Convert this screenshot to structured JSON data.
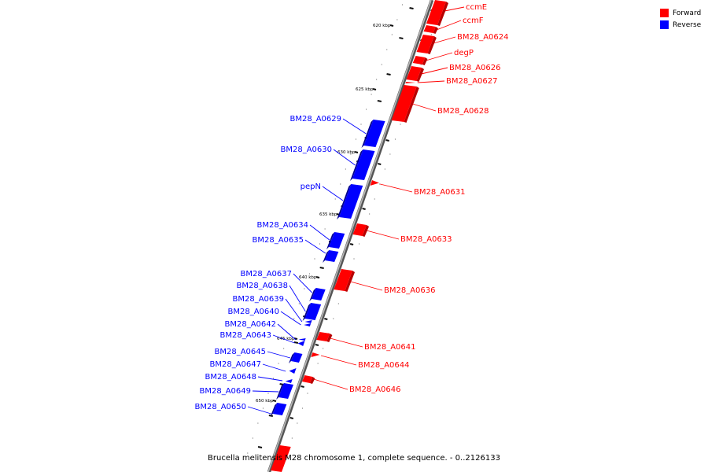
{
  "caption": "Brucella melitensis M28 chromosome 1, complete sequence. - 0..2126133",
  "legend": [
    {
      "label": "Forward",
      "color": "#ff0000"
    },
    {
      "label": "Reverse",
      "color": "#0000ff"
    }
  ],
  "colors": {
    "forward": "#ff0000",
    "reverse": "#0000ff",
    "backbone": "#808080"
  },
  "ticks": [
    {
      "label": "620 kbp",
      "kbp": 620
    },
    {
      "label": "625 kbp",
      "kbp": 625
    },
    {
      "label": "630 kbp",
      "kbp": 630
    },
    {
      "label": "635 kbp",
      "kbp": 635
    },
    {
      "label": "640 kbp",
      "kbp": 640
    },
    {
      "label": "645 kbp",
      "kbp": 645
    },
    {
      "label": "650 kbp",
      "kbp": 650
    }
  ],
  "genes": [
    {
      "name": "ccmE",
      "strand": "forward"
    },
    {
      "name": "ccmF",
      "strand": "forward"
    },
    {
      "name": "BM28_A0624",
      "strand": "forward"
    },
    {
      "name": "degP",
      "strand": "forward"
    },
    {
      "name": "BM28_A0626",
      "strand": "forward"
    },
    {
      "name": "BM28_A0627",
      "strand": "forward"
    },
    {
      "name": "BM28_A0628",
      "strand": "forward"
    },
    {
      "name": "BM28_A0629",
      "strand": "reverse"
    },
    {
      "name": "BM28_A0630",
      "strand": "reverse"
    },
    {
      "name": "BM28_A0631",
      "strand": "forward"
    },
    {
      "name": "pepN",
      "strand": "reverse"
    },
    {
      "name": "BM28_A0633",
      "strand": "forward"
    },
    {
      "name": "BM28_A0634",
      "strand": "reverse"
    },
    {
      "name": "BM28_A0635",
      "strand": "reverse"
    },
    {
      "name": "BM28_A0636",
      "strand": "forward"
    },
    {
      "name": "BM28_A0637",
      "strand": "reverse"
    },
    {
      "name": "BM28_A0638",
      "strand": "reverse"
    },
    {
      "name": "BM28_A0639",
      "strand": "reverse"
    },
    {
      "name": "BM28_A0640",
      "strand": "reverse"
    },
    {
      "name": "BM28_A0641",
      "strand": "forward"
    },
    {
      "name": "BM28_A0642",
      "strand": "reverse"
    },
    {
      "name": "BM28_A0643",
      "strand": "reverse"
    },
    {
      "name": "BM28_A0644",
      "strand": "forward"
    },
    {
      "name": "BM28_A0645",
      "strand": "reverse"
    },
    {
      "name": "BM28_A0646",
      "strand": "forward"
    },
    {
      "name": "BM28_A0647",
      "strand": "reverse"
    },
    {
      "name": "BM28_A0648",
      "strand": "reverse"
    },
    {
      "name": "BM28_A0649",
      "strand": "reverse"
    },
    {
      "name": "BM28_A0650",
      "strand": "reverse"
    }
  ]
}
